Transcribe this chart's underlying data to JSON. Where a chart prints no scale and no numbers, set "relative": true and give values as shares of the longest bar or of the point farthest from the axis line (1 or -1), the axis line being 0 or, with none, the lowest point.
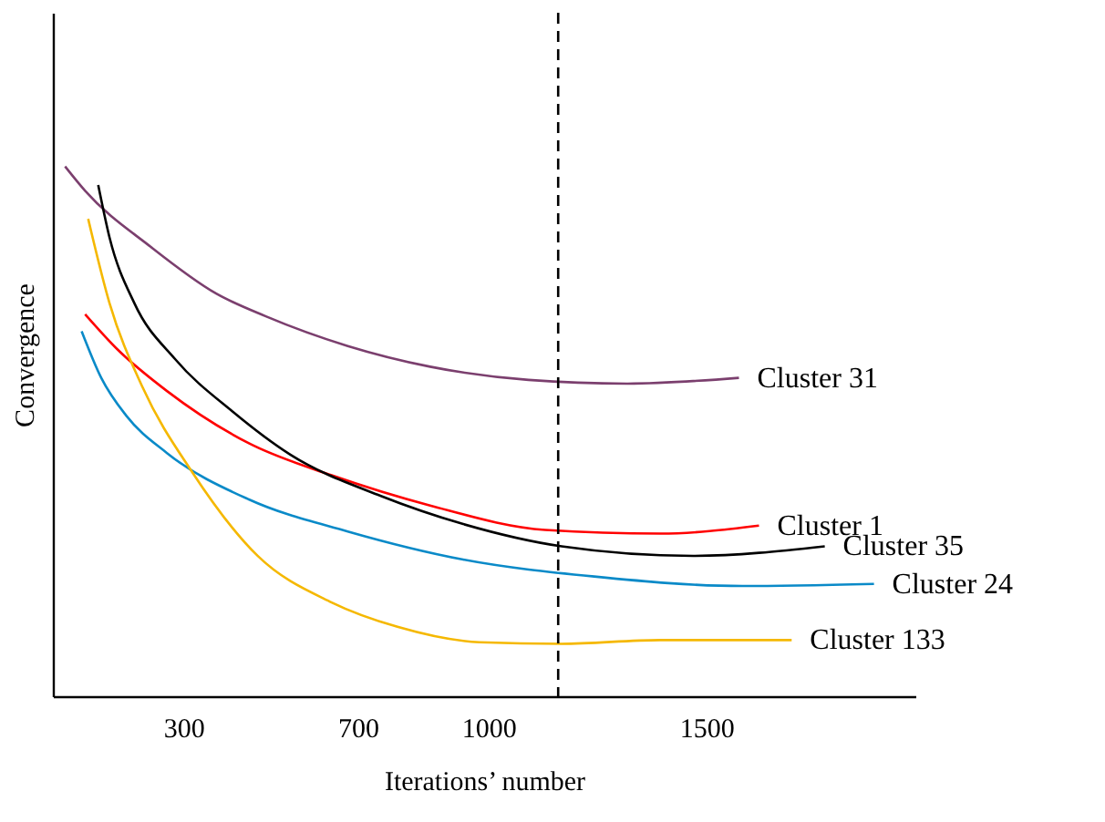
{
  "chart_data": {
    "type": "line",
    "xlabel": "Iterations’ number",
    "ylabel": "Convergence",
    "relative": true,
    "xlim": [
      0,
      1980
    ],
    "xticks": [
      300,
      700,
      1000,
      1500
    ],
    "legend": false,
    "grid": false,
    "marker": "none",
    "line_style": "solid",
    "ref_lines": [
      {
        "axis": "x",
        "value": 1160,
        "line_style": "dashed",
        "color": "#000000"
      }
    ],
    "series": [
      {
        "name": "Cluster 31",
        "color": "#7b3f6e",
        "x": [
          28,
          74,
          225,
          375,
          489,
          677,
          866,
          1092,
          1319,
          1575
        ],
        "values": [
          1,
          0.954,
          0.848,
          0.76,
          0.717,
          0.661,
          0.622,
          0.597,
          0.59,
          0.601
        ]
      },
      {
        "name": "Cluster 1",
        "color": "#ff0000",
        "x": [
          74,
          149,
          262,
          451,
          640,
          866,
          1130,
          1394,
          1621
        ],
        "values": [
          0.721,
          0.654,
          0.576,
          0.477,
          0.417,
          0.36,
          0.314,
          0.307,
          0.322
        ]
      },
      {
        "name": "Cluster 35",
        "color": "#000000",
        "x": [
          104,
          130,
          187,
          281,
          413,
          545,
          753,
          942,
          1168,
          1470,
          1772
        ],
        "values": [
          0.965,
          0.866,
          0.742,
          0.636,
          0.537,
          0.456,
          0.378,
          0.325,
          0.283,
          0.265,
          0.283
        ]
      },
      {
        "name": "Cluster 24",
        "color": "#0a8ac8",
        "x": [
          66,
          111,
          168,
          262,
          451,
          677,
          942,
          1243,
          1583,
          1885
        ],
        "values": [
          0.689,
          0.601,
          0.53,
          0.459,
          0.371,
          0.311,
          0.258,
          0.226,
          0.208,
          0.212
        ]
      },
      {
        "name": "Cluster 133",
        "color": "#f5b800",
        "x": [
          81,
          130,
          206,
          319,
          470,
          640,
          791,
          979,
          1168,
          1394,
          1696
        ],
        "values": [
          0.901,
          0.742,
          0.583,
          0.424,
          0.265,
          0.177,
          0.131,
          0.102,
          0.099,
          0.106,
          0.106
        ]
      }
    ]
  }
}
